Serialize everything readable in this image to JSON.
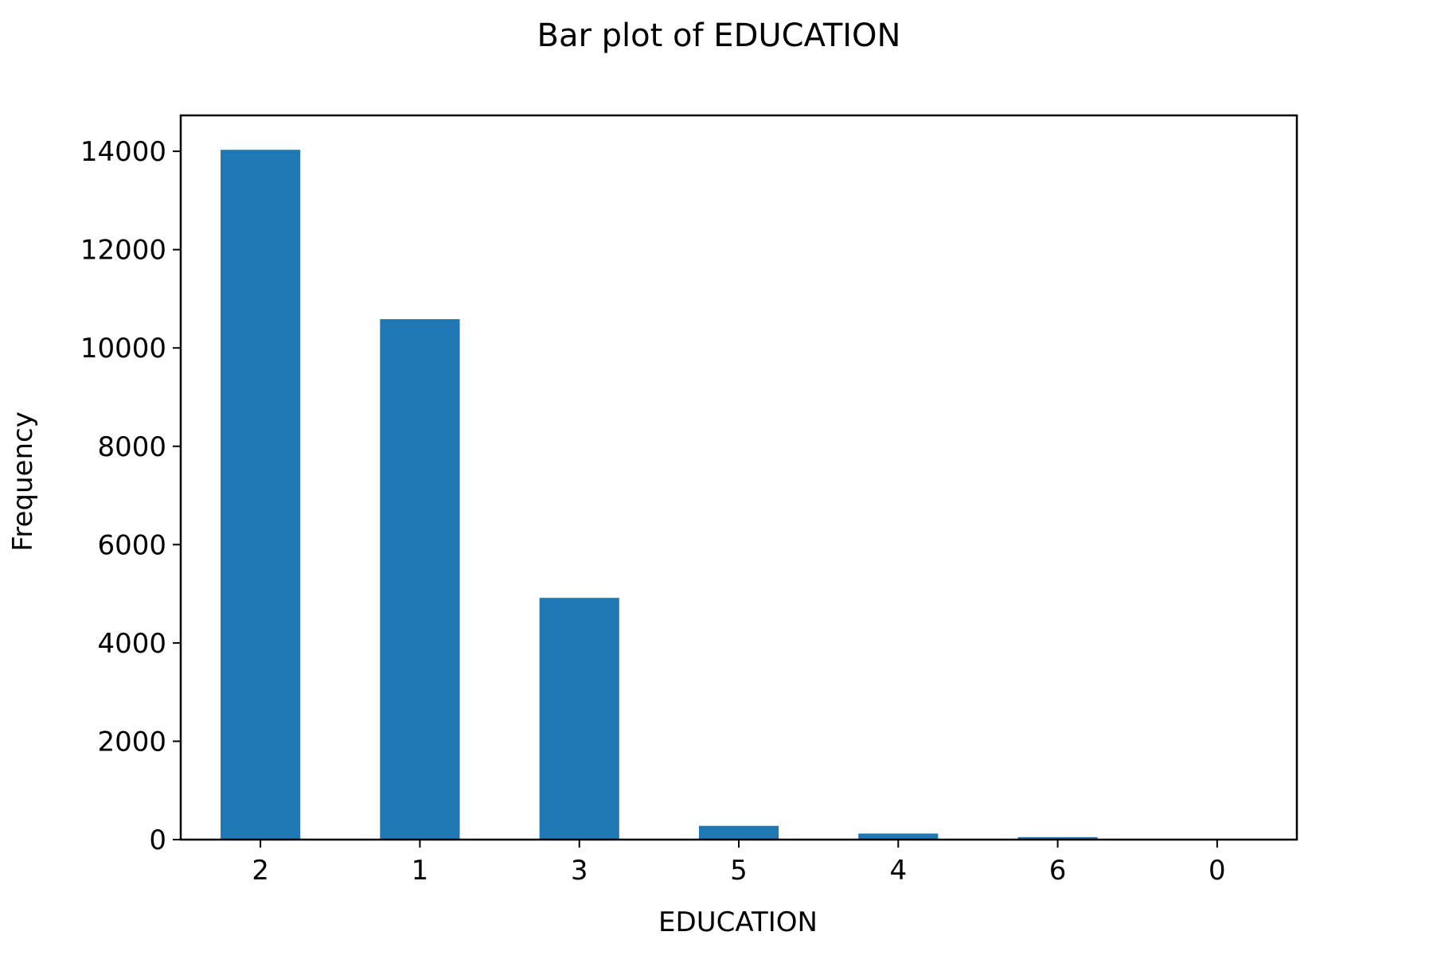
{
  "chart_data": {
    "type": "bar",
    "title": "Bar plot of EDUCATION",
    "xlabel": "EDUCATION",
    "ylabel": "Frequency",
    "categories": [
      "2",
      "1",
      "3",
      "5",
      "4",
      "6",
      "0"
    ],
    "values": [
      14030,
      10585,
      4917,
      280,
      123,
      51,
      14
    ],
    "ylim": [
      0,
      14730
    ],
    "yticks": [
      0,
      2000,
      4000,
      6000,
      8000,
      10000,
      12000,
      14000
    ],
    "bar_color": "#1f77b4",
    "grid": false,
    "legend": "none"
  }
}
